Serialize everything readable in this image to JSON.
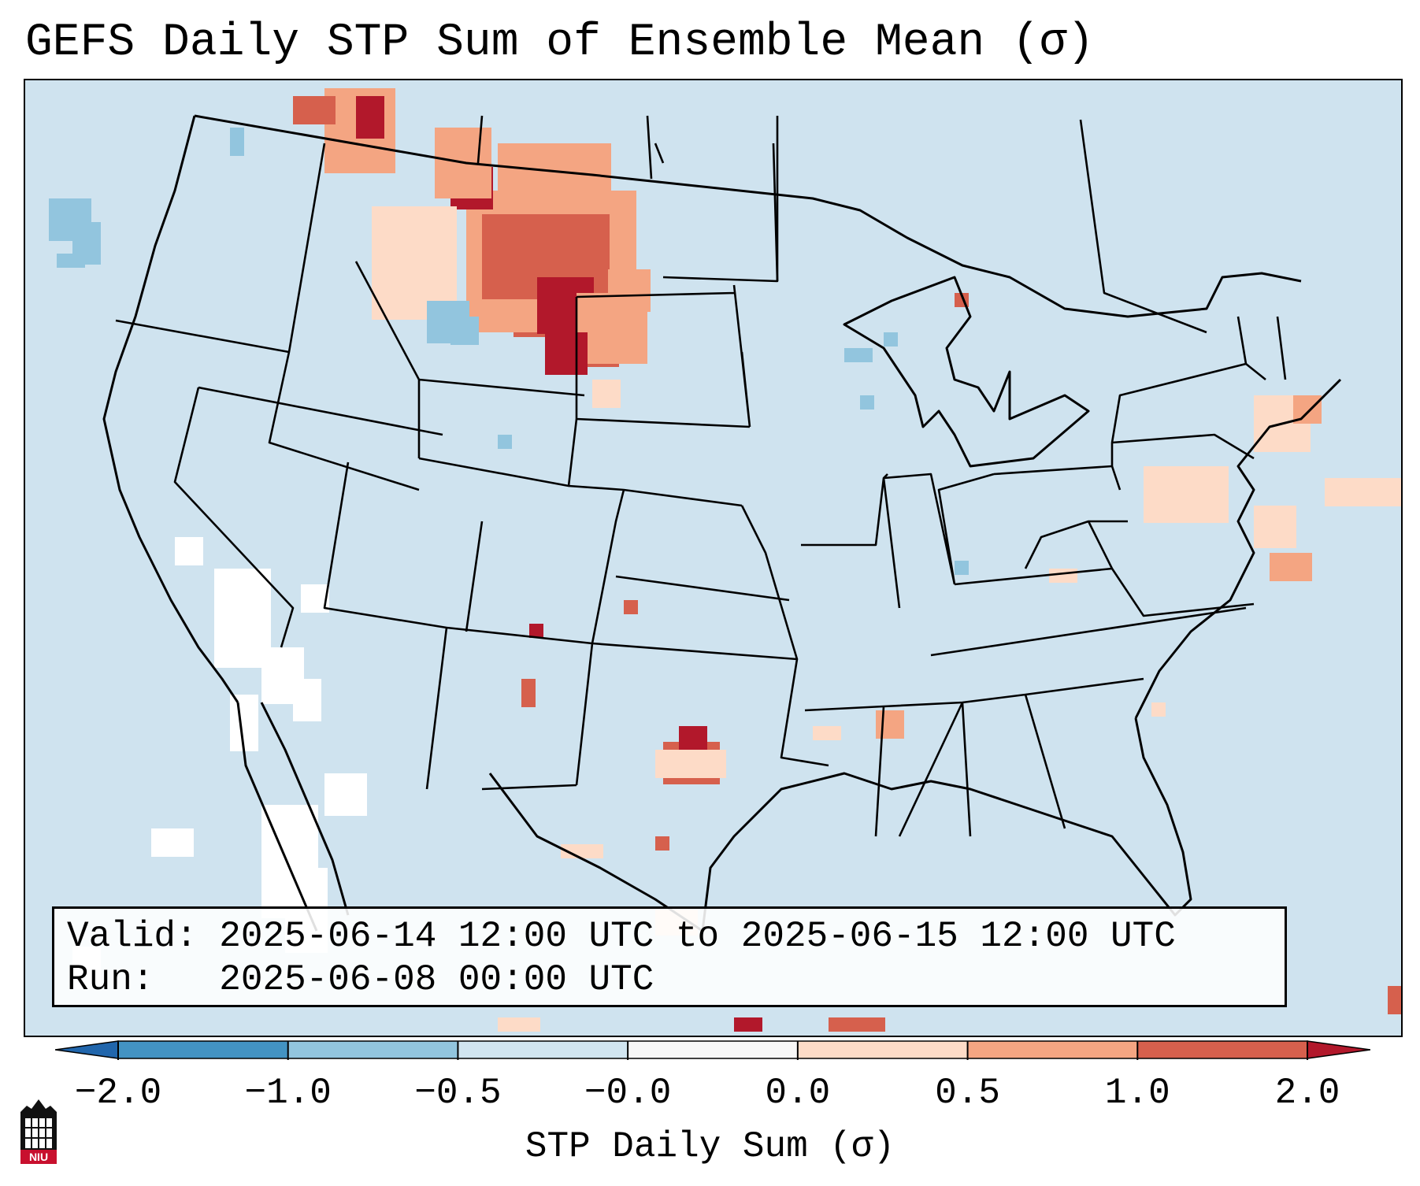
{
  "title": "GEFS Daily STP Sum of Ensemble Mean (σ)",
  "info_box": {
    "valid_label": "Valid:",
    "valid_value": "2025-06-14 12:00 UTC to 2025-06-15 12:00 UTC",
    "run_label": "Run:",
    "run_value": "2025-06-08 00:00 UTC"
  },
  "colorbar": {
    "label": "STP Daily Sum (σ)",
    "ticks": [
      "−2.0",
      "−1.0",
      "−0.5",
      "−0.0",
      "0.0",
      "0.5",
      "1.0",
      "2.0"
    ],
    "bins": [
      {
        "range": "< -2.0",
        "color": "#2166ac"
      },
      {
        "range": "-2.0 to -1.0",
        "color": "#4393c3"
      },
      {
        "range": "-1.0 to -0.5",
        "color": "#92c5de"
      },
      {
        "range": "-0.5 to -0.0",
        "color": "#d1e5f0"
      },
      {
        "range": "-0.0 to 0.0",
        "color": "#f7f7f7"
      },
      {
        "range": "0.0 to 0.5",
        "color": "#fddbc7"
      },
      {
        "range": "0.5 to 1.0",
        "color": "#f4a582"
      },
      {
        "range": "1.0 to 2.0",
        "color": "#d6604d"
      },
      {
        "range": "> 2.0",
        "color": "#b2182b"
      }
    ]
  },
  "colors": {
    "background": "#cfe3ef",
    "positive_high": "#b2182b",
    "positive_mid": "#d6604d",
    "positive_low": "#f4a582",
    "positive_min": "#fddbc7",
    "negative_low": "#92c5de",
    "neutral": "#ffffff"
  },
  "logo": {
    "text": "NIU",
    "name": "niu-logo"
  }
}
